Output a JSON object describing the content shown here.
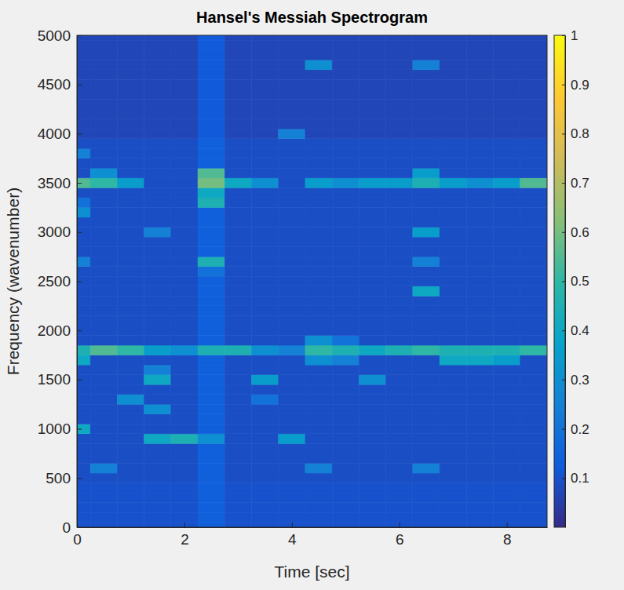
{
  "chart_data": {
    "type": "heatmap",
    "title": "Hansel's Messiah Spectrogram",
    "xlabel": "Time [sec]",
    "ylabel": "Frequency (wavenumber)",
    "x": [
      0,
      0.5,
      1,
      1.5,
      2,
      2.5,
      3,
      3.5,
      4,
      4.5,
      5,
      5.5,
      6,
      6.5,
      7,
      7.5,
      8,
      8.5
    ],
    "y": [
      0,
      100,
      200,
      300,
      400,
      500,
      600,
      700,
      800,
      900,
      1000,
      1100,
      1200,
      1300,
      1400,
      1500,
      1600,
      1700,
      1800,
      1900,
      2000,
      2100,
      2200,
      2300,
      2400,
      2500,
      2600,
      2700,
      2800,
      2900,
      3000,
      3100,
      3200,
      3300,
      3400,
      3500,
      3600,
      3700,
      3800,
      3900,
      4000,
      4100,
      4200,
      4300,
      4400,
      4500,
      4600,
      4700,
      4800,
      4900,
      5000
    ],
    "z": [
      [
        0.1,
        0.1,
        0.1,
        0.1,
        0.1,
        0.14,
        0.1,
        0.1,
        0.1,
        0.1,
        0.1,
        0.1,
        0.1,
        0.1,
        0.1,
        0.1,
        0.1,
        0.1
      ],
      [
        0.1,
        0.1,
        0.1,
        0.1,
        0.1,
        0.14,
        0.1,
        0.1,
        0.1,
        0.1,
        0.1,
        0.1,
        0.1,
        0.1,
        0.1,
        0.1,
        0.1,
        0.1
      ],
      [
        0.1,
        0.1,
        0.1,
        0.1,
        0.1,
        0.14,
        0.1,
        0.1,
        0.1,
        0.1,
        0.1,
        0.1,
        0.1,
        0.1,
        0.1,
        0.1,
        0.1,
        0.1
      ],
      [
        0.1,
        0.1,
        0.1,
        0.1,
        0.1,
        0.14,
        0.1,
        0.1,
        0.1,
        0.1,
        0.1,
        0.1,
        0.1,
        0.1,
        0.1,
        0.1,
        0.1,
        0.1
      ],
      [
        0.1,
        0.1,
        0.1,
        0.1,
        0.1,
        0.14,
        0.1,
        0.1,
        0.1,
        0.1,
        0.1,
        0.1,
        0.1,
        0.1,
        0.1,
        0.1,
        0.1,
        0.1
      ],
      [
        0.09,
        0.09,
        0.09,
        0.09,
        0.09,
        0.14,
        0.09,
        0.09,
        0.09,
        0.09,
        0.09,
        0.09,
        0.09,
        0.09,
        0.09,
        0.09,
        0.09,
        0.09
      ],
      [
        0.09,
        0.25,
        0.09,
        0.09,
        0.09,
        0.14,
        0.09,
        0.09,
        0.09,
        0.25,
        0.09,
        0.09,
        0.09,
        0.25,
        0.09,
        0.09,
        0.09,
        0.09
      ],
      [
        0.09,
        0.09,
        0.09,
        0.09,
        0.09,
        0.14,
        0.09,
        0.09,
        0.09,
        0.09,
        0.09,
        0.09,
        0.09,
        0.09,
        0.09,
        0.09,
        0.09,
        0.09
      ],
      [
        0.09,
        0.09,
        0.09,
        0.09,
        0.09,
        0.14,
        0.09,
        0.09,
        0.09,
        0.09,
        0.09,
        0.09,
        0.09,
        0.09,
        0.09,
        0.09,
        0.09,
        0.09
      ],
      [
        0.09,
        0.09,
        0.09,
        0.4,
        0.45,
        0.3,
        0.09,
        0.09,
        0.35,
        0.09,
        0.09,
        0.09,
        0.09,
        0.09,
        0.09,
        0.09,
        0.09,
        0.09
      ],
      [
        0.4,
        0.09,
        0.09,
        0.09,
        0.09,
        0.14,
        0.09,
        0.09,
        0.09,
        0.09,
        0.09,
        0.09,
        0.09,
        0.09,
        0.09,
        0.09,
        0.09,
        0.09
      ],
      [
        0.09,
        0.09,
        0.09,
        0.09,
        0.09,
        0.14,
        0.09,
        0.09,
        0.09,
        0.09,
        0.09,
        0.09,
        0.09,
        0.09,
        0.09,
        0.09,
        0.09,
        0.09
      ],
      [
        0.09,
        0.09,
        0.09,
        0.3,
        0.09,
        0.14,
        0.09,
        0.09,
        0.09,
        0.09,
        0.09,
        0.09,
        0.09,
        0.09,
        0.09,
        0.09,
        0.09,
        0.09
      ],
      [
        0.09,
        0.09,
        0.3,
        0.09,
        0.09,
        0.14,
        0.09,
        0.2,
        0.09,
        0.09,
        0.09,
        0.09,
        0.09,
        0.09,
        0.09,
        0.09,
        0.09,
        0.09
      ],
      [
        0.09,
        0.09,
        0.09,
        0.09,
        0.09,
        0.14,
        0.09,
        0.09,
        0.09,
        0.09,
        0.09,
        0.09,
        0.09,
        0.09,
        0.09,
        0.09,
        0.09,
        0.09
      ],
      [
        0.09,
        0.09,
        0.09,
        0.4,
        0.09,
        0.14,
        0.09,
        0.35,
        0.09,
        0.09,
        0.09,
        0.3,
        0.09,
        0.09,
        0.09,
        0.09,
        0.09,
        0.09
      ],
      [
        0.09,
        0.09,
        0.09,
        0.25,
        0.09,
        0.14,
        0.09,
        0.09,
        0.09,
        0.09,
        0.09,
        0.09,
        0.09,
        0.09,
        0.09,
        0.09,
        0.09,
        0.09
      ],
      [
        0.4,
        0.09,
        0.09,
        0.09,
        0.09,
        0.14,
        0.09,
        0.09,
        0.09,
        0.3,
        0.25,
        0.09,
        0.09,
        0.09,
        0.4,
        0.4,
        0.35,
        0.09
      ],
      [
        0.45,
        0.55,
        0.5,
        0.35,
        0.3,
        0.45,
        0.45,
        0.3,
        0.25,
        0.5,
        0.45,
        0.4,
        0.45,
        0.5,
        0.45,
        0.45,
        0.45,
        0.5
      ],
      [
        0.09,
        0.09,
        0.09,
        0.09,
        0.09,
        0.14,
        0.09,
        0.09,
        0.09,
        0.3,
        0.2,
        0.09,
        0.09,
        0.09,
        0.09,
        0.09,
        0.09,
        0.09
      ],
      [
        0.09,
        0.09,
        0.09,
        0.09,
        0.09,
        0.14,
        0.09,
        0.09,
        0.09,
        0.09,
        0.09,
        0.09,
        0.09,
        0.09,
        0.09,
        0.09,
        0.09,
        0.09
      ],
      [
        0.09,
        0.09,
        0.09,
        0.09,
        0.09,
        0.14,
        0.09,
        0.09,
        0.09,
        0.09,
        0.09,
        0.09,
        0.09,
        0.09,
        0.09,
        0.09,
        0.09,
        0.09
      ],
      [
        0.09,
        0.09,
        0.09,
        0.09,
        0.09,
        0.14,
        0.09,
        0.09,
        0.09,
        0.09,
        0.09,
        0.09,
        0.09,
        0.09,
        0.09,
        0.09,
        0.09,
        0.09
      ],
      [
        0.09,
        0.09,
        0.09,
        0.09,
        0.09,
        0.14,
        0.09,
        0.09,
        0.09,
        0.09,
        0.09,
        0.09,
        0.09,
        0.09,
        0.09,
        0.09,
        0.09,
        0.09
      ],
      [
        0.09,
        0.09,
        0.09,
        0.09,
        0.09,
        0.14,
        0.09,
        0.09,
        0.09,
        0.09,
        0.09,
        0.09,
        0.09,
        0.4,
        0.09,
        0.09,
        0.09,
        0.09
      ],
      [
        0.09,
        0.09,
        0.09,
        0.09,
        0.09,
        0.14,
        0.09,
        0.09,
        0.09,
        0.09,
        0.09,
        0.09,
        0.09,
        0.09,
        0.09,
        0.09,
        0.09,
        0.09
      ],
      [
        0.09,
        0.09,
        0.09,
        0.09,
        0.09,
        0.2,
        0.09,
        0.09,
        0.09,
        0.09,
        0.09,
        0.09,
        0.09,
        0.09,
        0.09,
        0.09,
        0.09,
        0.09
      ],
      [
        0.25,
        0.09,
        0.09,
        0.09,
        0.09,
        0.45,
        0.09,
        0.09,
        0.09,
        0.09,
        0.09,
        0.09,
        0.09,
        0.25,
        0.09,
        0.09,
        0.09,
        0.09
      ],
      [
        0.09,
        0.09,
        0.09,
        0.09,
        0.09,
        0.14,
        0.09,
        0.09,
        0.09,
        0.09,
        0.09,
        0.09,
        0.09,
        0.09,
        0.09,
        0.09,
        0.09,
        0.09
      ],
      [
        0.09,
        0.09,
        0.09,
        0.09,
        0.09,
        0.14,
        0.09,
        0.09,
        0.09,
        0.09,
        0.09,
        0.09,
        0.09,
        0.09,
        0.09,
        0.09,
        0.09,
        0.09
      ],
      [
        0.09,
        0.09,
        0.09,
        0.25,
        0.09,
        0.14,
        0.09,
        0.09,
        0.09,
        0.09,
        0.09,
        0.09,
        0.09,
        0.35,
        0.09,
        0.09,
        0.09,
        0.09
      ],
      [
        0.09,
        0.09,
        0.09,
        0.09,
        0.09,
        0.14,
        0.09,
        0.09,
        0.09,
        0.09,
        0.09,
        0.09,
        0.09,
        0.09,
        0.09,
        0.09,
        0.09,
        0.09
      ],
      [
        0.3,
        0.09,
        0.09,
        0.09,
        0.09,
        0.14,
        0.09,
        0.09,
        0.09,
        0.09,
        0.09,
        0.09,
        0.09,
        0.09,
        0.09,
        0.09,
        0.09,
        0.09
      ],
      [
        0.2,
        0.09,
        0.09,
        0.09,
        0.09,
        0.45,
        0.09,
        0.09,
        0.09,
        0.09,
        0.09,
        0.09,
        0.09,
        0.09,
        0.09,
        0.09,
        0.09,
        0.09
      ],
      [
        0.09,
        0.09,
        0.09,
        0.09,
        0.09,
        0.4,
        0.09,
        0.09,
        0.09,
        0.09,
        0.09,
        0.09,
        0.09,
        0.09,
        0.09,
        0.09,
        0.09,
        0.09
      ],
      [
        0.55,
        0.5,
        0.35,
        0.09,
        0.09,
        0.6,
        0.4,
        0.3,
        0.09,
        0.35,
        0.3,
        0.35,
        0.35,
        0.45,
        0.35,
        0.3,
        0.35,
        0.55
      ],
      [
        0.09,
        0.3,
        0.09,
        0.09,
        0.09,
        0.55,
        0.09,
        0.09,
        0.09,
        0.09,
        0.09,
        0.09,
        0.09,
        0.35,
        0.09,
        0.09,
        0.09,
        0.09
      ],
      [
        0.09,
        0.09,
        0.09,
        0.09,
        0.09,
        0.14,
        0.09,
        0.09,
        0.09,
        0.09,
        0.09,
        0.09,
        0.09,
        0.09,
        0.09,
        0.09,
        0.09,
        0.09
      ],
      [
        0.25,
        0.09,
        0.09,
        0.09,
        0.09,
        0.14,
        0.09,
        0.09,
        0.09,
        0.09,
        0.09,
        0.09,
        0.09,
        0.09,
        0.09,
        0.09,
        0.09,
        0.09
      ],
      [
        0.09,
        0.09,
        0.09,
        0.09,
        0.09,
        0.14,
        0.09,
        0.09,
        0.09,
        0.09,
        0.09,
        0.09,
        0.09,
        0.09,
        0.09,
        0.09,
        0.09,
        0.09
      ],
      [
        0.07,
        0.07,
        0.07,
        0.07,
        0.07,
        0.12,
        0.07,
        0.07,
        0.25,
        0.07,
        0.07,
        0.07,
        0.07,
        0.07,
        0.07,
        0.07,
        0.07,
        0.07
      ],
      [
        0.07,
        0.07,
        0.07,
        0.07,
        0.07,
        0.12,
        0.07,
        0.07,
        0.07,
        0.07,
        0.07,
        0.07,
        0.07,
        0.07,
        0.07,
        0.07,
        0.07,
        0.07
      ],
      [
        0.07,
        0.07,
        0.07,
        0.07,
        0.07,
        0.12,
        0.07,
        0.07,
        0.07,
        0.07,
        0.07,
        0.07,
        0.07,
        0.07,
        0.07,
        0.07,
        0.07,
        0.07
      ],
      [
        0.07,
        0.07,
        0.07,
        0.07,
        0.07,
        0.12,
        0.07,
        0.07,
        0.07,
        0.07,
        0.07,
        0.07,
        0.07,
        0.07,
        0.07,
        0.07,
        0.07,
        0.07
      ],
      [
        0.07,
        0.07,
        0.07,
        0.07,
        0.07,
        0.12,
        0.07,
        0.07,
        0.07,
        0.07,
        0.07,
        0.07,
        0.07,
        0.07,
        0.07,
        0.07,
        0.07,
        0.07
      ],
      [
        0.07,
        0.07,
        0.07,
        0.07,
        0.07,
        0.12,
        0.07,
        0.07,
        0.07,
        0.07,
        0.07,
        0.07,
        0.07,
        0.07,
        0.07,
        0.07,
        0.07,
        0.07
      ],
      [
        0.07,
        0.07,
        0.07,
        0.07,
        0.07,
        0.12,
        0.07,
        0.07,
        0.07,
        0.07,
        0.07,
        0.07,
        0.07,
        0.07,
        0.07,
        0.07,
        0.07,
        0.07
      ],
      [
        0.07,
        0.07,
        0.07,
        0.07,
        0.07,
        0.12,
        0.07,
        0.07,
        0.07,
        0.3,
        0.07,
        0.07,
        0.07,
        0.25,
        0.07,
        0.07,
        0.07,
        0.07
      ],
      [
        0.07,
        0.07,
        0.07,
        0.07,
        0.07,
        0.12,
        0.07,
        0.07,
        0.07,
        0.07,
        0.07,
        0.07,
        0.07,
        0.07,
        0.07,
        0.07,
        0.07,
        0.07
      ],
      [
        0.07,
        0.07,
        0.07,
        0.07,
        0.07,
        0.12,
        0.07,
        0.07,
        0.07,
        0.07,
        0.07,
        0.07,
        0.07,
        0.07,
        0.07,
        0.07,
        0.07,
        0.07
      ],
      [
        0.07,
        0.07,
        0.07,
        0.07,
        0.07,
        0.12,
        0.07,
        0.07,
        0.07,
        0.07,
        0.07,
        0.07,
        0.07,
        0.07,
        0.07,
        0.07,
        0.07,
        0.07
      ]
    ],
    "xlim": [
      0,
      8.75
    ],
    "ylim": [
      0,
      5000
    ],
    "xticks": [
      0,
      2,
      4,
      6,
      8
    ],
    "yticks": [
      0,
      500,
      1000,
      1500,
      2000,
      2500,
      3000,
      3500,
      4000,
      4500,
      5000
    ],
    "colorbar": {
      "lim": [
        0,
        1
      ],
      "ticks": [
        0.1,
        0.2,
        0.3,
        0.4,
        0.5,
        0.6,
        0.7,
        0.8,
        0.9,
        1
      ]
    }
  }
}
